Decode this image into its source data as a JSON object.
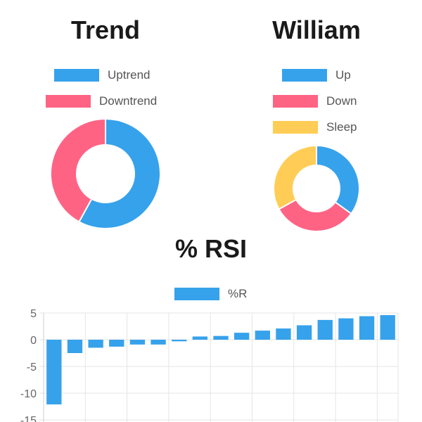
{
  "header": {
    "cut_title": ""
  },
  "colors": {
    "up": "#36a2eb",
    "down": "#ff6384",
    "sleep": "#ffcd56",
    "grid": "#e5e5e5",
    "tick": "#666666"
  },
  "chart_data": [
    {
      "type": "pie",
      "title": "Trend",
      "donut": true,
      "labels": [
        "Uptrend",
        "Downtrend"
      ],
      "values": [
        58,
        42
      ],
      "colors": [
        "#36a2eb",
        "#ff6384"
      ]
    },
    {
      "type": "pie",
      "title": "William",
      "donut": true,
      "labels": [
        "Up",
        "Down",
        "Sleep"
      ],
      "values": [
        35,
        32,
        33
      ],
      "colors": [
        "#36a2eb",
        "#ff6384",
        "#ffcd56"
      ]
    },
    {
      "type": "bar",
      "title": "% RSI",
      "series": [
        {
          "name": "%R",
          "values": [
            -12.1,
            -2.5,
            -1.5,
            -1.3,
            -0.9,
            -0.9,
            -0.3,
            0.6,
            0.7,
            1.3,
            1.7,
            2.1,
            2.7,
            3.7,
            4.0,
            4.4,
            4.6
          ]
        }
      ],
      "ylim": [
        -15,
        5
      ],
      "yticks": [
        5,
        0,
        -5,
        -10,
        -15
      ],
      "ytick_labels": [
        "5",
        "0",
        "-5",
        "-10",
        "-15"
      ],
      "grid": true,
      "legend": "top"
    }
  ]
}
